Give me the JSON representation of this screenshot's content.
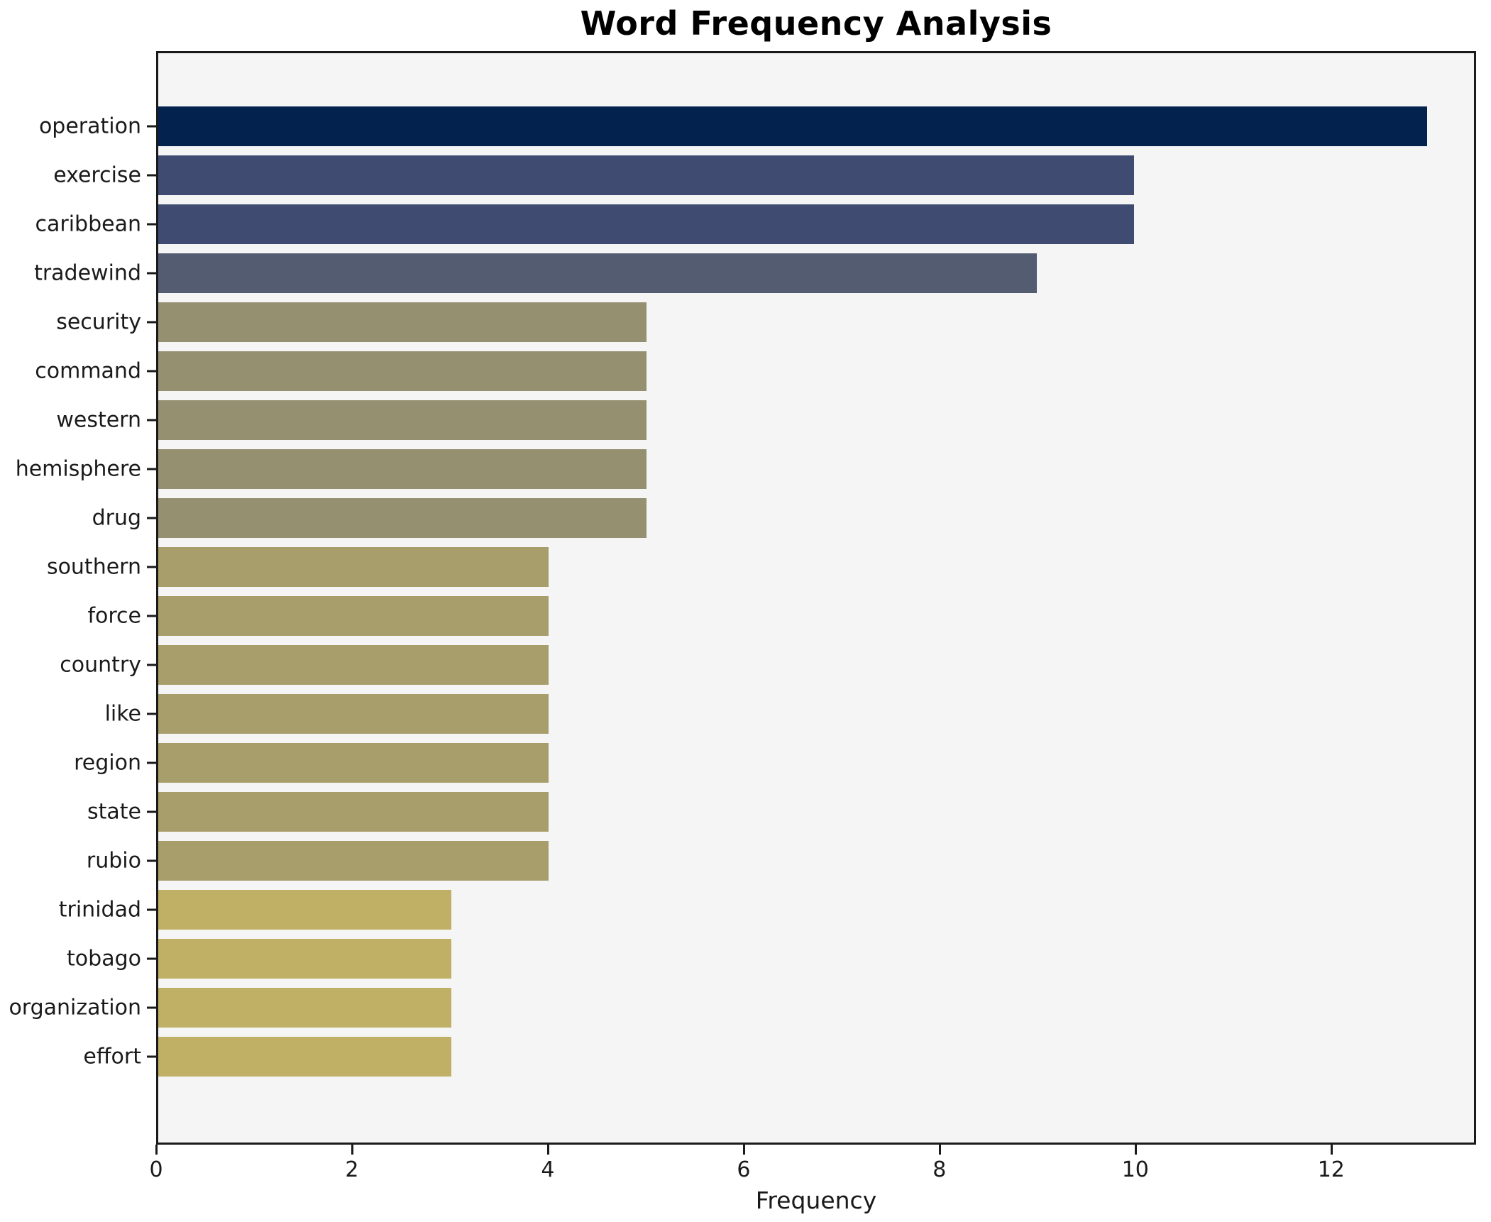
{
  "figure": {
    "title": "Word Frequency Analysis",
    "xlabel": "Frequency"
  },
  "chart_data": {
    "type": "bar",
    "orientation": "horizontal",
    "title": "Word Frequency Analysis",
    "xlabel": "Frequency",
    "ylabel": "",
    "categories": [
      "operation",
      "exercise",
      "caribbean",
      "tradewind",
      "security",
      "command",
      "western",
      "hemisphere",
      "drug",
      "southern",
      "force",
      "country",
      "like",
      "region",
      "state",
      "rubio",
      "trinidad",
      "tobago",
      "organization",
      "effort"
    ],
    "values": [
      13,
      10,
      10,
      9,
      5,
      5,
      5,
      5,
      5,
      4,
      4,
      4,
      4,
      4,
      4,
      4,
      3,
      3,
      3,
      3
    ],
    "bar_colors": [
      "#03234e",
      "#3f4b70",
      "#3f4b70",
      "#545c72",
      "#949070",
      "#949070",
      "#949070",
      "#949070",
      "#949070",
      "#a89e6c",
      "#a89e6c",
      "#a89e6c",
      "#a89e6c",
      "#a89e6c",
      "#a89e6c",
      "#a89e6c",
      "#c0b065",
      "#c0b065",
      "#c0b065",
      "#c0b065"
    ],
    "x_ticks": [
      0,
      2,
      4,
      6,
      8,
      10,
      12
    ],
    "xlim": [
      0,
      13.48
    ],
    "grid": false,
    "legend": null,
    "plot_background": "#f5f5f6",
    "axis_color": "#1a1a1a"
  }
}
